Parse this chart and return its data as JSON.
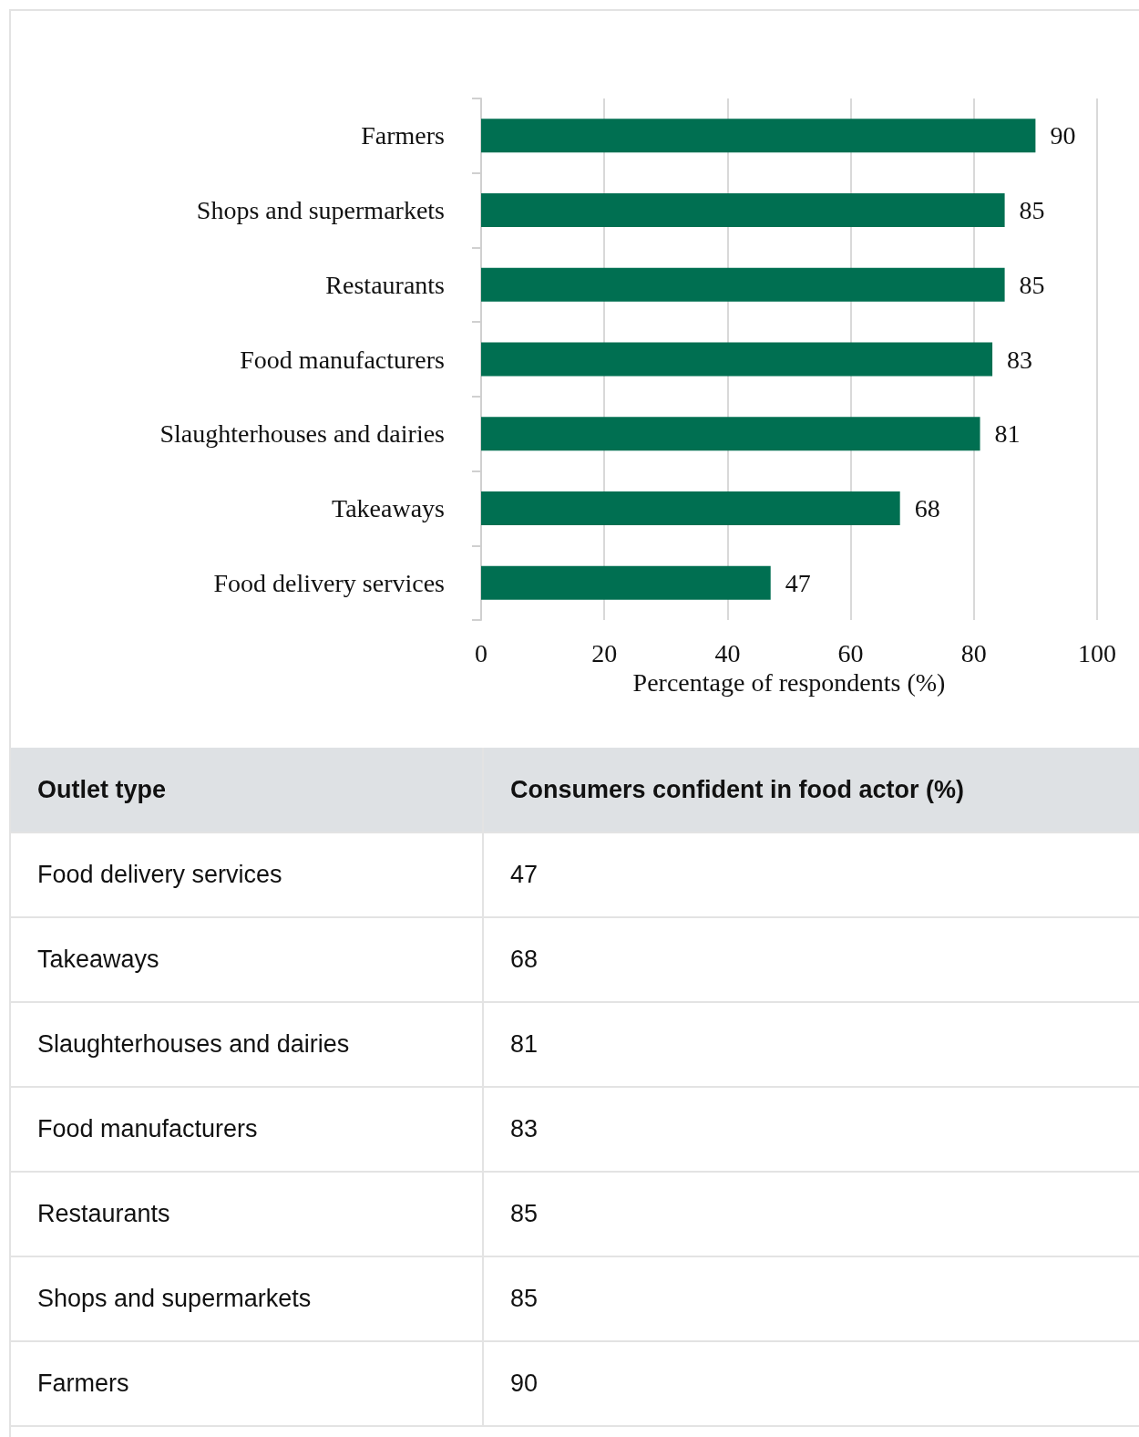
{
  "chart_data": [
    {
      "type": "bar",
      "orientation": "horizontal",
      "categories": [
        "Farmers",
        "Shops and supermarkets",
        "Restaurants",
        "Food manufacturers",
        "Slaughterhouses and dairies",
        "Takeaways",
        "Food delivery services"
      ],
      "values": [
        90,
        85,
        85,
        83,
        81,
        68,
        47
      ],
      "color": "#006f51",
      "xlim": [
        0,
        100
      ],
      "xticks": [
        0,
        20,
        40,
        60,
        80,
        100
      ],
      "xlabel": "Percentage of respondents (%)",
      "grid": "x",
      "data_labels": true
    },
    {
      "type": "other",
      "annotations": [
        "Outlet type",
        "Consumers confident in food actor (%)"
      ],
      "categories": [
        "Food delivery services",
        "Takeaways",
        "Slaughterhouses and dairies",
        "Food manufacturers",
        "Restaurants",
        "Shops and supermarkets",
        "Farmers"
      ],
      "values": [
        47,
        68,
        81,
        83,
        85,
        85,
        90
      ],
      "data_labels": true
    }
  ]
}
